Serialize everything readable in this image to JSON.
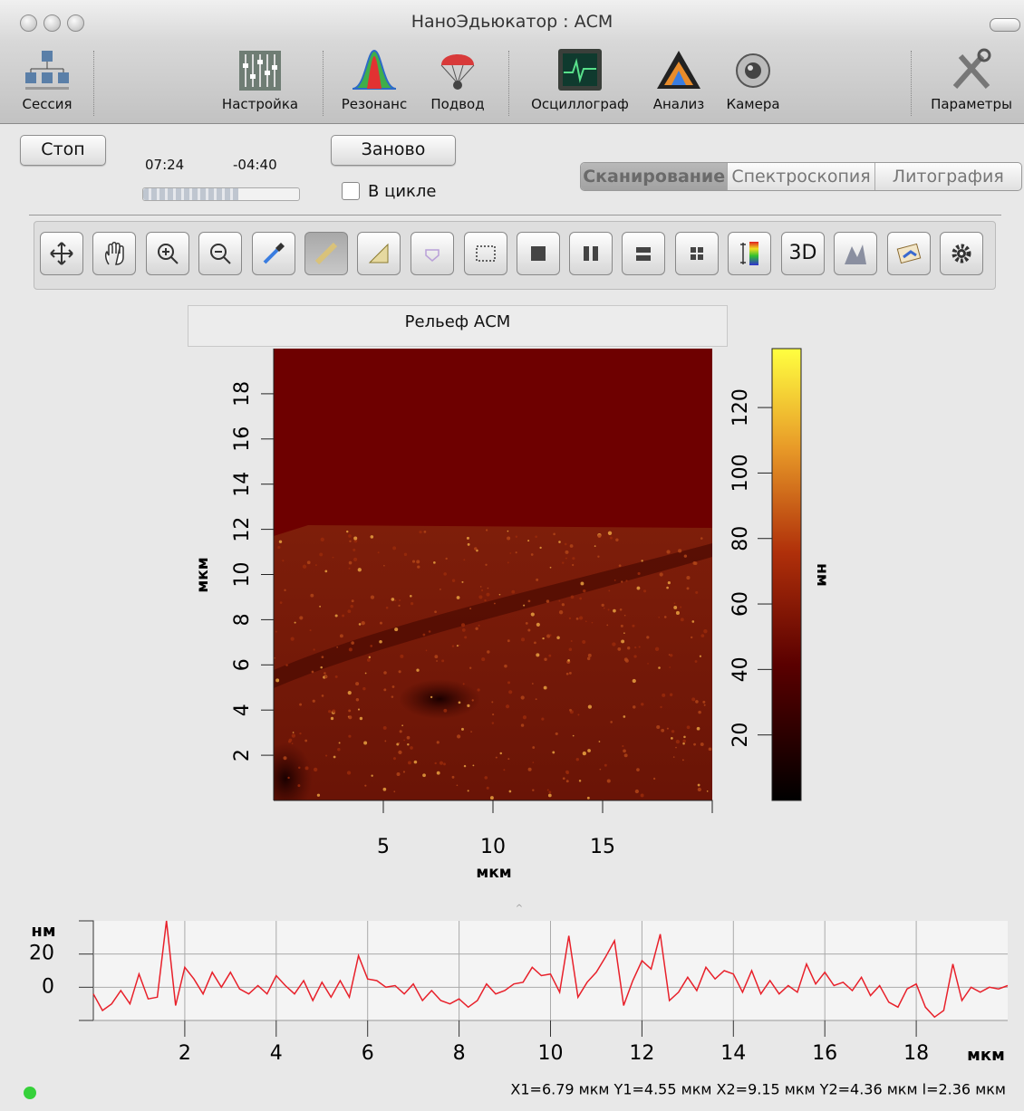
{
  "window": {
    "title": "НаноЭдьюкатор : АСМ"
  },
  "toolbar": {
    "items": [
      "Сессия",
      "Настройка",
      "Резонанс",
      "Подвод",
      "Осциллограф",
      "Анализ",
      "Камера",
      "Параметры"
    ]
  },
  "controls": {
    "stop": "Стоп",
    "elapsed": "07:24",
    "remaining": "-04:40",
    "restart": "Заново",
    "loop": "В цикле"
  },
  "tabs": [
    "Сканирование",
    "Спектроскопия",
    "Литография"
  ],
  "tools": {
    "view_3d": "3D"
  },
  "image_panel": {
    "title": "Рельеф АСМ"
  },
  "chart_data": [
    {
      "type": "image",
      "xlabel": "мкм",
      "ylabel": "мкм",
      "xlim": [
        0,
        20
      ],
      "ylim": [
        0,
        20
      ],
      "xticks": [
        5,
        10,
        15
      ],
      "yticks": [
        2,
        4,
        6,
        8,
        10,
        12,
        14,
        16,
        18
      ],
      "colorbar": {
        "label": "нм",
        "lim": [
          0,
          138
        ],
        "ticks": [
          20,
          40,
          60,
          80,
          100,
          120
        ]
      }
    },
    {
      "type": "line",
      "ylabel": "нм",
      "xlabel": "мкм",
      "xlim": [
        0,
        20
      ],
      "ylim": [
        -20,
        40
      ],
      "xticks": [
        2,
        4,
        6,
        8,
        10,
        12,
        14,
        16,
        18
      ],
      "yticks": [
        0,
        20
      ],
      "grid": true,
      "color": "#e8202a",
      "x": [
        0,
        0.2,
        0.4,
        0.6,
        0.8,
        1,
        1.2,
        1.4,
        1.6,
        1.8,
        2,
        2.2,
        2.4,
        2.6,
        2.8,
        3,
        3.2,
        3.4,
        3.6,
        3.8,
        4,
        4.2,
        4.4,
        4.6,
        4.8,
        5,
        5.2,
        5.4,
        5.6,
        5.8,
        6,
        6.2,
        6.4,
        6.6,
        6.8,
        7,
        7.2,
        7.4,
        7.6,
        7.8,
        8,
        8.2,
        8.4,
        8.6,
        8.8,
        9,
        9.2,
        9.4,
        9.6,
        9.8,
        10,
        10.2,
        10.4,
        10.6,
        10.8,
        11,
        11.2,
        11.4,
        11.6,
        11.8,
        12,
        12.2,
        12.4,
        12.6,
        12.8,
        13,
        13.2,
        13.4,
        13.6,
        13.8,
        14,
        14.2,
        14.4,
        14.6,
        14.8,
        15,
        15.2,
        15.4,
        15.6,
        15.8,
        16,
        16.2,
        16.4,
        16.6,
        16.8,
        17,
        17.2,
        17.4,
        17.6,
        17.8,
        18,
        18.2,
        18.4,
        18.6,
        18.8,
        19,
        19.2,
        19.4,
        19.6,
        19.8,
        20
      ],
      "values": [
        -4,
        -14,
        -10,
        -2,
        -10,
        8,
        -7,
        -6,
        40,
        -11,
        12,
        5,
        -4,
        9,
        0,
        9,
        -1,
        -4,
        1,
        -4,
        7,
        1,
        -4,
        4,
        -8,
        3,
        -6,
        4,
        -6,
        19,
        5,
        4,
        0,
        1,
        -4,
        2,
        -8,
        -2,
        -8,
        -10,
        -7,
        -12,
        -8,
        2,
        -4,
        -2,
        2,
        3,
        12,
        7,
        8,
        -3,
        31,
        -6,
        3,
        9,
        18,
        28,
        -11,
        4,
        16,
        11,
        32,
        -8,
        -3,
        6,
        -2,
        12,
        5,
        10,
        8,
        -3,
        10,
        -4,
        4,
        -4,
        1,
        -3,
        14,
        2,
        9,
        1,
        3,
        -2,
        6,
        -5,
        1,
        -9,
        -12,
        -1,
        2,
        -12,
        -18,
        -14,
        14,
        -8,
        0,
        -3,
        0,
        -1,
        1
      ]
    }
  ],
  "status": {
    "measurement": "X1=6.79 мкм Y1=4.55 мкм X2=9.15 мкм Y2=4.36 мкм l=2.36 мкм"
  }
}
